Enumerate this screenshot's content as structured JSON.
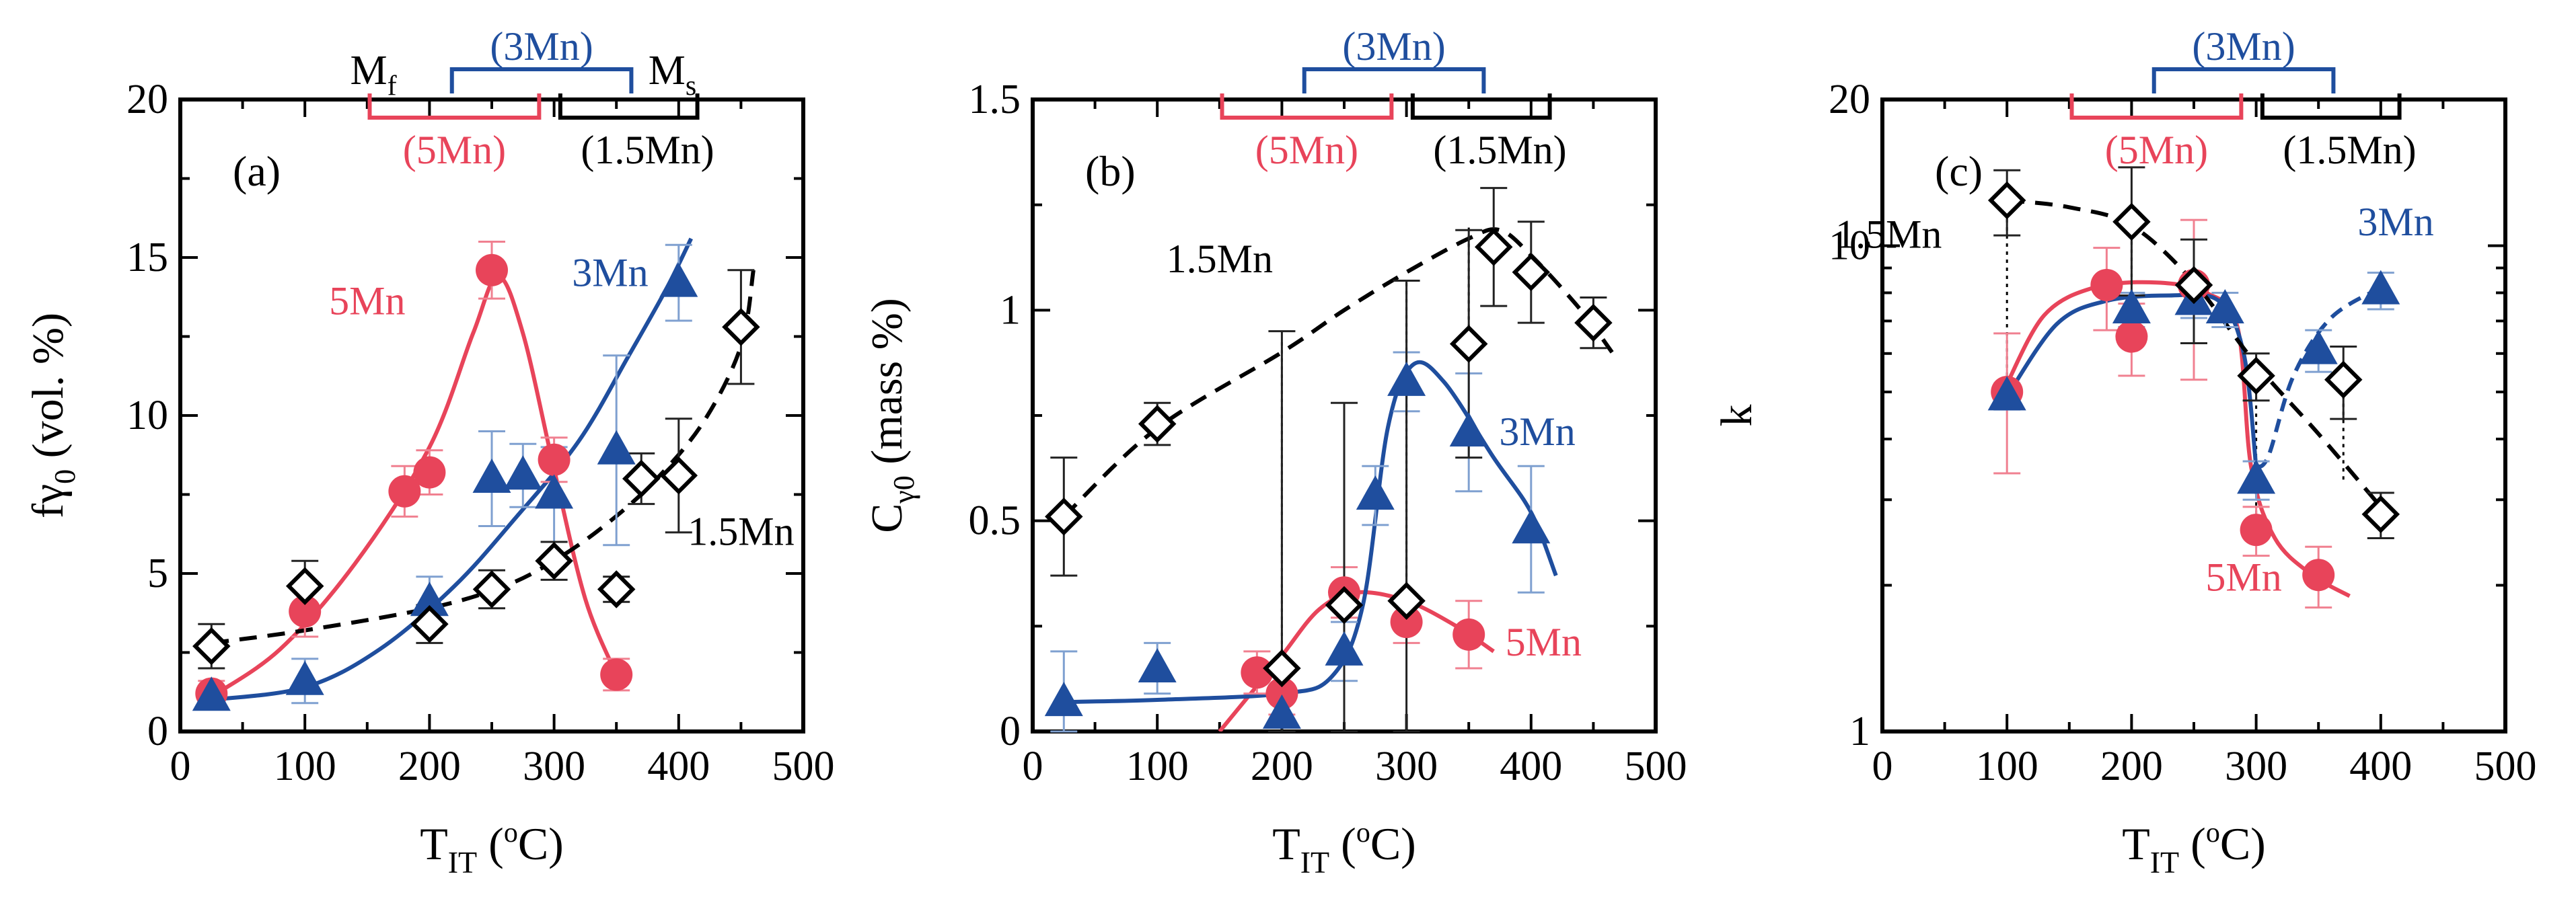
{
  "figure": {
    "colors": {
      "red": "#e8445a",
      "blue": "#1f4e9e",
      "black": "#000000",
      "errorbar_red": "#f08090",
      "errorbar_blue": "#7fa0d0",
      "errorbar_black": "#222222"
    }
  },
  "chart_data": [
    {
      "type": "scatter",
      "panel_label": "(a)",
      "ylabel_main": "fγ",
      "ylabel_sub": "0",
      "ylabel_rest": " (vol. %)",
      "xlabel_main": "T",
      "xlabel_sub": "IT",
      "xlabel_unit_open": " (",
      "xlabel_unit_sup": "o",
      "xlabel_unit_close": "C)",
      "xlim": [
        0,
        500
      ],
      "ylim": [
        0,
        20
      ],
      "yscale": "linear",
      "xticks": [
        0,
        100,
        200,
        300,
        400,
        500
      ],
      "yticks": [
        0,
        5,
        10,
        15,
        20
      ],
      "xticklabels": [
        "0",
        "100",
        "200",
        "300",
        "400",
        "500"
      ],
      "yticklabels": [
        "0",
        "5",
        "10",
        "15",
        "20"
      ],
      "bracket_top_labels": {
        "mf": "M",
        "mf_sub": "f",
        "mn3": "(3Mn)",
        "ms": "M",
        "ms_sub": "s"
      },
      "bracket_bottom_labels": {
        "mn5": "(5Mn)",
        "mn15": "(1.5Mn)"
      },
      "series": [
        {
          "name": "5Mn",
          "color": "red",
          "marker": "circle",
          "line": "solid",
          "points": [
            [
              25,
              1.2,
              0.4
            ],
            [
              100,
              3.8,
              0.8
            ],
            [
              180,
              7.6,
              0.8
            ],
            [
              200,
              8.2,
              0.7
            ],
            [
              250,
              14.6,
              0.9
            ],
            [
              300,
              8.6,
              0.7
            ],
            [
              350,
              1.8,
              0.5
            ]
          ],
          "curve": [
            [
              25,
              1.1
            ],
            [
              80,
              2.6
            ],
            [
              140,
              5.3
            ],
            [
              200,
              9.0
            ],
            [
              235,
              12.6
            ],
            [
              255,
              14.4
            ],
            [
              275,
              12.6
            ],
            [
              300,
              8.3
            ],
            [
              325,
              4.2
            ],
            [
              350,
              1.8
            ]
          ]
        },
        {
          "name": "3Mn",
          "color": "blue",
          "marker": "triangle",
          "line": "solid",
          "points": [
            [
              25,
              1.1,
              0.3
            ],
            [
              100,
              1.6,
              0.7
            ],
            [
              200,
              4.1,
              0.8
            ],
            [
              250,
              8.0,
              1.5
            ],
            [
              275,
              8.1,
              1.0
            ],
            [
              300,
              7.5,
              1.5
            ],
            [
              350,
              8.9,
              3.0
            ],
            [
              400,
              14.2,
              1.2
            ]
          ],
          "curve": [
            [
              25,
              1.0
            ],
            [
              100,
              1.4
            ],
            [
              160,
              2.6
            ],
            [
              220,
              4.6
            ],
            [
              270,
              6.8
            ],
            [
              320,
              9.2
            ],
            [
              360,
              11.9
            ],
            [
              390,
              14.0
            ],
            [
              410,
              15.6
            ]
          ]
        },
        {
          "name": "1.5Mn",
          "color": "black",
          "marker": "diamond",
          "line": "dashed",
          "points": [
            [
              25,
              2.7,
              0.7
            ],
            [
              100,
              4.6,
              0.8
            ],
            [
              200,
              3.4,
              0.6
            ],
            [
              250,
              4.5,
              0.6
            ],
            [
              300,
              5.4,
              0.6
            ],
            [
              350,
              4.5,
              0.4
            ],
            [
              370,
              8.0,
              0.8
            ],
            [
              400,
              8.1,
              1.8
            ],
            [
              450,
              12.8,
              1.8
            ]
          ],
          "curve": [
            [
              25,
              2.8
            ],
            [
              100,
              3.2
            ],
            [
              200,
              3.9
            ],
            [
              260,
              4.6
            ],
            [
              300,
              5.4
            ],
            [
              340,
              6.5
            ],
            [
              380,
              7.9
            ],
            [
              420,
              9.8
            ],
            [
              450,
              12.2
            ],
            [
              460,
              14.6
            ]
          ]
        }
      ],
      "annotations": [
        {
          "text": "5Mn",
          "color": "red",
          "x": 150,
          "y": 13.2
        },
        {
          "text": "3Mn",
          "color": "blue",
          "x": 345,
          "y": 14.1
        },
        {
          "text": "1.5Mn",
          "color": "black",
          "x": 450,
          "y": 5.9
        }
      ]
    },
    {
      "type": "scatter",
      "panel_label": "(b)",
      "ylabel_main": "C",
      "ylabel_sub": "γ0",
      "ylabel_rest": " (mass %)",
      "xlabel_main": "T",
      "xlabel_sub": "IT",
      "xlabel_unit_open": " (",
      "xlabel_unit_sup": "o",
      "xlabel_unit_close": "C)",
      "xlim": [
        0,
        500
      ],
      "ylim": [
        0,
        1.5
      ],
      "yscale": "linear",
      "xticks": [
        0,
        100,
        200,
        300,
        400,
        500
      ],
      "yticks": [
        0,
        0.5,
        1,
        1.5
      ],
      "xticklabels": [
        "0",
        "100",
        "200",
        "300",
        "400",
        "500"
      ],
      "yticklabels": [
        "0",
        "0.5",
        "1",
        "1.5"
      ],
      "bracket_top_labels": {
        "mn3": "(3Mn)"
      },
      "bracket_bottom_labels": {
        "mn5": "(5Mn)",
        "mn15": "(1.5Mn)"
      },
      "series": [
        {
          "name": "5Mn",
          "color": "red",
          "marker": "circle",
          "line": "solid",
          "points": [
            [
              180,
              0.14,
              0.05
            ],
            [
              200,
              0.09,
              0.05
            ],
            [
              250,
              0.33,
              0.06
            ],
            [
              300,
              0.26,
              0.05
            ],
            [
              350,
              0.23,
              0.08
            ]
          ],
          "curve": [
            [
              150,
              0.0
            ],
            [
              175,
              0.09
            ],
            [
              200,
              0.18
            ],
            [
              230,
              0.29
            ],
            [
              260,
              0.33
            ],
            [
              300,
              0.31
            ],
            [
              340,
              0.25
            ],
            [
              370,
              0.19
            ]
          ]
        },
        {
          "name": "3Mn",
          "color": "blue",
          "marker": "triangle",
          "line": "solid",
          "points": [
            [
              25,
              0.07,
              0.12
            ],
            [
              100,
              0.15,
              0.06
            ],
            [
              200,
              0.04,
              0.06
            ],
            [
              250,
              0.19,
              0.07
            ],
            [
              275,
              0.56,
              0.07
            ],
            [
              300,
              0.83,
              0.07
            ],
            [
              350,
              0.71,
              0.14
            ],
            [
              400,
              0.48,
              0.15
            ]
          ],
          "curve": [
            [
              25,
              0.07
            ],
            [
              100,
              0.075
            ],
            [
              200,
              0.09
            ],
            [
              240,
              0.13
            ],
            [
              265,
              0.3
            ],
            [
              285,
              0.72
            ],
            [
              305,
              0.87
            ],
            [
              330,
              0.83
            ],
            [
              370,
              0.65
            ],
            [
              400,
              0.52
            ],
            [
              420,
              0.37
            ]
          ]
        },
        {
          "name": "1.5Mn",
          "color": "black",
          "marker": "diamond",
          "line": "dashed",
          "points": [
            [
              25,
              0.51,
              0.14
            ],
            [
              100,
              0.73,
              0.05
            ],
            [
              200,
              0.15,
              0.8
            ],
            [
              250,
              0.3,
              0.48
            ],
            [
              300,
              0.31,
              0.76
            ],
            [
              350,
              0.92,
              0.27
            ],
            [
              370,
              1.15,
              0.14
            ],
            [
              400,
              1.09,
              0.12
            ],
            [
              450,
              0.97,
              0.06
            ]
          ],
          "curve": [
            [
              25,
              0.51
            ],
            [
              100,
              0.72
            ],
            [
              200,
              0.9
            ],
            [
              250,
              1.0
            ],
            [
              300,
              1.09
            ],
            [
              350,
              1.17
            ],
            [
              375,
              1.19
            ],
            [
              400,
              1.13
            ],
            [
              440,
              1.0
            ],
            [
              465,
              0.9
            ]
          ]
        }
      ],
      "dotted_links": [
        [
          200,
          0.15,
          0.93
        ],
        [
          250,
          0.3,
          0.76
        ],
        [
          300,
          0.31,
          1.07
        ],
        [
          350,
          0.92,
          1.2
        ]
      ],
      "annotations": [
        {
          "text": "1.5Mn",
          "color": "black",
          "x": 150,
          "y": 1.09
        },
        {
          "text": "3Mn",
          "color": "blue",
          "x": 405,
          "y": 0.68
        },
        {
          "text": "5Mn",
          "color": "red",
          "x": 410,
          "y": 0.18
        }
      ]
    },
    {
      "type": "scatter",
      "panel_label": "(c)",
      "ylabel_main": "k",
      "xlabel_main": "T",
      "xlabel_sub": "IT",
      "xlabel_unit_open": " (",
      "xlabel_unit_sup": "o",
      "xlabel_unit_close": "C)",
      "xlim": [
        0,
        500
      ],
      "ylim": [
        1,
        20
      ],
      "yscale": "log",
      "xticks": [
        0,
        100,
        200,
        300,
        400,
        500
      ],
      "yticks": [
        1,
        10,
        20
      ],
      "xticklabels": [
        "0",
        "100",
        "200",
        "300",
        "400",
        "500"
      ],
      "yticklabels": [
        "1",
        "10",
        "20"
      ],
      "bracket_top_labels": {
        "mn3": "(3Mn)"
      },
      "bracket_bottom_labels": {
        "mn5": "(5Mn)",
        "mn15": "(1.5Mn)"
      },
      "series": [
        {
          "name": "5Mn",
          "color": "red",
          "marker": "circle",
          "line": "solid",
          "points": [
            [
              100,
              5.0,
              1.6
            ],
            [
              180,
              8.3,
              1.6
            ],
            [
              200,
              6.5,
              1.1
            ],
            [
              250,
              8.3,
              3.0
            ],
            [
              300,
              2.6,
              0.3
            ],
            [
              350,
              2.1,
              0.3
            ]
          ],
          "curve": [
            [
              100,
              5.2
            ],
            [
              130,
              7.2
            ],
            [
              170,
              8.2
            ],
            [
              220,
              8.4
            ],
            [
              260,
              8.0
            ],
            [
              285,
              6.8
            ],
            [
              296,
              3.5
            ],
            [
              315,
              2.5
            ],
            [
              345,
              2.1
            ],
            [
              375,
              1.9
            ]
          ]
        },
        {
          "name": "3Mn",
          "color": "blue",
          "marker": "triangle",
          "line": "solid",
          "points": [
            [
              100,
              4.9,
              0.3
            ],
            [
              200,
              7.4,
              0.6
            ],
            [
              250,
              7.7,
              0.6
            ],
            [
              275,
              7.4,
              0.6
            ],
            [
              300,
              3.3,
              0.3
            ],
            [
              350,
              6.1,
              0.6
            ],
            [
              400,
              8.1,
              0.7
            ]
          ],
          "curve": [
            [
              100,
              4.9
            ],
            [
              140,
              6.9
            ],
            [
              180,
              7.7
            ],
            [
              230,
              7.9
            ],
            [
              270,
              7.7
            ],
            [
              290,
              6.0
            ],
            [
              300,
              3.5
            ],
            [
              310,
              3.7
            ],
            [
              330,
              5.4
            ],
            [
              360,
              7.1
            ],
            [
              400,
              8.2
            ]
          ],
          "dashed_from_x": 300
        },
        {
          "name": "1.5Mn",
          "color": "black",
          "marker": "diamond",
          "line": "dashed",
          "points": [
            [
              100,
              12.4,
              1.9
            ],
            [
              200,
              11.2,
              3.3
            ],
            [
              250,
              8.3,
              2.0
            ],
            [
              300,
              5.4,
              0.6
            ],
            [
              370,
              5.3,
              0.9
            ],
            [
              400,
              2.8,
              0.3
            ]
          ],
          "curve": [
            [
              100,
              12.4
            ],
            [
              150,
              12.0
            ],
            [
              200,
              11.0
            ],
            [
              250,
              8.4
            ],
            [
              300,
              5.7
            ],
            [
              350,
              4.1
            ],
            [
              400,
              2.9
            ]
          ]
        }
      ],
      "dotted_links": [
        [
          100,
          5.0,
          12.4
        ],
        [
          200,
          7.4,
          11.2
        ],
        [
          300,
          2.6,
          5.4
        ],
        [
          370,
          3.3,
          5.3
        ]
      ],
      "annotations": [
        {
          "text": "1.5Mn",
          "color": "black",
          "x": 5,
          "y": 9.9
        },
        {
          "text": "3Mn",
          "color": "blue",
          "x": 412,
          "y": 10.5
        },
        {
          "text": "5Mn",
          "color": "red",
          "x": 290,
          "y": 1.95
        }
      ]
    }
  ]
}
